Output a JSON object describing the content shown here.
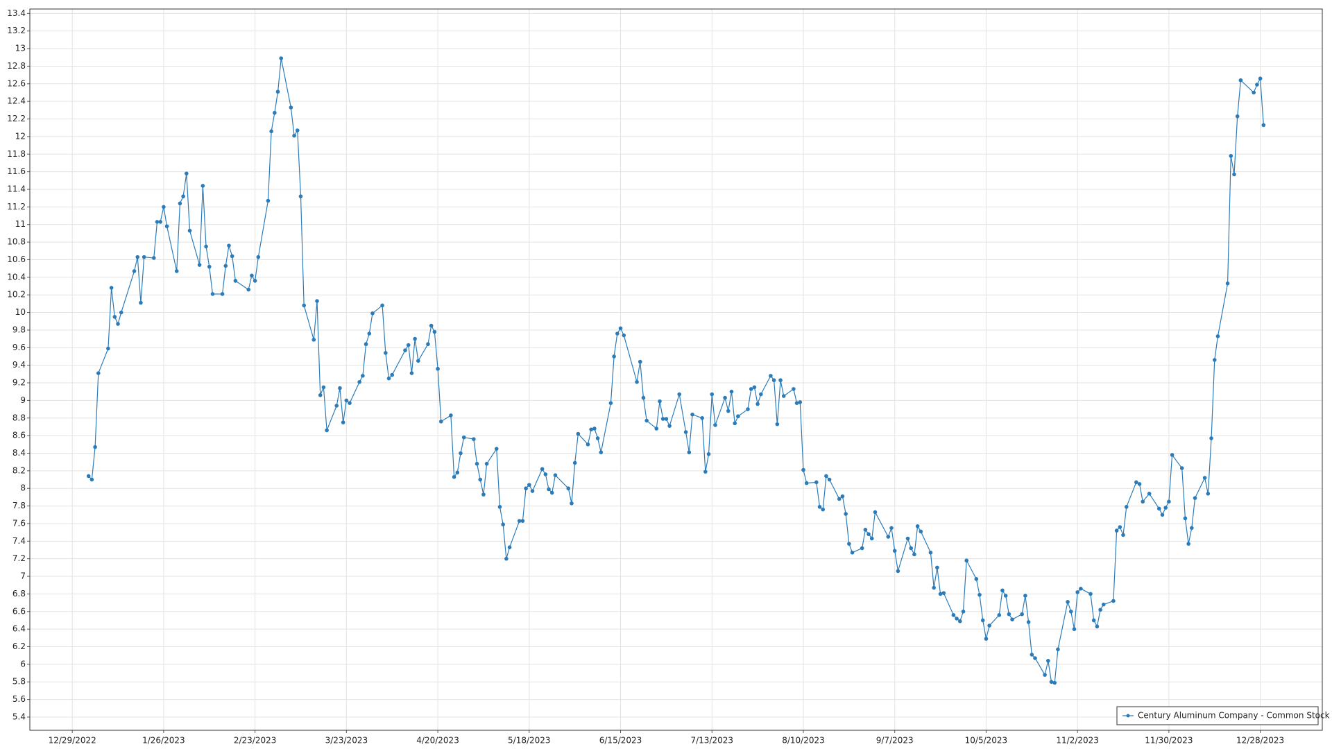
{
  "chart_data": {
    "type": "line",
    "x": [
      "1/3/2023",
      "1/4/2023",
      "1/5/2023",
      "1/6/2023",
      "1/9/2023",
      "1/10/2023",
      "1/11/2023",
      "1/12/2023",
      "1/13/2023",
      "1/17/2023",
      "1/18/2023",
      "1/19/2023",
      "1/20/2023",
      "1/23/2023",
      "1/24/2023",
      "1/25/2023",
      "1/26/2023",
      "1/27/2023",
      "1/30/2023",
      "1/31/2023",
      "2/1/2023",
      "2/2/2023",
      "2/3/2023",
      "2/6/2023",
      "2/7/2023",
      "2/8/2023",
      "2/9/2023",
      "2/10/2023",
      "2/13/2023",
      "2/14/2023",
      "2/15/2023",
      "2/16/2023",
      "2/17/2023",
      "2/21/2023",
      "2/22/2023",
      "2/23/2023",
      "2/24/2023",
      "2/27/2023",
      "2/28/2023",
      "3/1/2023",
      "3/2/2023",
      "3/3/2023",
      "3/6/2023",
      "3/7/2023",
      "3/8/2023",
      "3/9/2023",
      "3/10/2023",
      "3/13/2023",
      "3/14/2023",
      "3/15/2023",
      "3/16/2023",
      "3/17/2023",
      "3/20/2023",
      "3/21/2023",
      "3/22/2023",
      "3/23/2023",
      "3/24/2023",
      "3/27/2023",
      "3/28/2023",
      "3/29/2023",
      "3/30/2023",
      "3/31/2023",
      "4/3/2023",
      "4/4/2023",
      "4/5/2023",
      "4/6/2023",
      "4/10/2023",
      "4/11/2023",
      "4/12/2023",
      "4/13/2023",
      "4/14/2023",
      "4/17/2023",
      "4/18/2023",
      "4/19/2023",
      "4/20/2023",
      "4/21/2023",
      "4/24/2023",
      "4/25/2023",
      "4/26/2023",
      "4/27/2023",
      "4/28/2023",
      "5/1/2023",
      "5/2/2023",
      "5/3/2023",
      "5/4/2023",
      "5/5/2023",
      "5/8/2023",
      "5/9/2023",
      "5/10/2023",
      "5/11/2023",
      "5/12/2023",
      "5/15/2023",
      "5/16/2023",
      "5/17/2023",
      "5/18/2023",
      "5/19/2023",
      "5/22/2023",
      "5/23/2023",
      "5/24/2023",
      "5/25/2023",
      "5/26/2023",
      "5/30/2023",
      "5/31/2023",
      "6/1/2023",
      "6/2/2023",
      "6/5/2023",
      "6/6/2023",
      "6/7/2023",
      "6/8/2023",
      "6/9/2023",
      "6/12/2023",
      "6/13/2023",
      "6/14/2023",
      "6/15/2023",
      "6/16/2023",
      "6/20/2023",
      "6/21/2023",
      "6/22/2023",
      "6/23/2023",
      "6/26/2023",
      "6/27/2023",
      "6/28/2023",
      "6/29/2023",
      "6/30/2023",
      "7/3/2023",
      "7/5/2023",
      "7/6/2023",
      "7/7/2023",
      "7/10/2023",
      "7/11/2023",
      "7/12/2023",
      "7/13/2023",
      "7/14/2023",
      "7/17/2023",
      "7/18/2023",
      "7/19/2023",
      "7/20/2023",
      "7/21/2023",
      "7/24/2023",
      "7/25/2023",
      "7/26/2023",
      "7/27/2023",
      "7/28/2023",
      "7/31/2023",
      "8/1/2023",
      "8/2/2023",
      "8/3/2023",
      "8/4/2023",
      "8/7/2023",
      "8/8/2023",
      "8/9/2023",
      "8/10/2023",
      "8/11/2023",
      "8/14/2023",
      "8/15/2023",
      "8/16/2023",
      "8/17/2023",
      "8/18/2023",
      "8/21/2023",
      "8/22/2023",
      "8/23/2023",
      "8/24/2023",
      "8/25/2023",
      "8/28/2023",
      "8/29/2023",
      "8/30/2023",
      "8/31/2023",
      "9/1/2023",
      "9/5/2023",
      "9/6/2023",
      "9/7/2023",
      "9/8/2023",
      "9/11/2023",
      "9/12/2023",
      "9/13/2023",
      "9/14/2023",
      "9/15/2023",
      "9/18/2023",
      "9/19/2023",
      "9/20/2023",
      "9/21/2023",
      "9/22/2023",
      "9/25/2023",
      "9/26/2023",
      "9/27/2023",
      "9/28/2023",
      "9/29/2023",
      "10/2/2023",
      "10/3/2023",
      "10/4/2023",
      "10/5/2023",
      "10/6/2023",
      "10/9/2023",
      "10/10/2023",
      "10/11/2023",
      "10/12/2023",
      "10/13/2023",
      "10/16/2023",
      "10/17/2023",
      "10/18/2023",
      "10/19/2023",
      "10/20/2023",
      "10/23/2023",
      "10/24/2023",
      "10/25/2023",
      "10/26/2023",
      "10/27/2023",
      "10/30/2023",
      "10/31/2023",
      "11/1/2023",
      "11/2/2023",
      "11/3/2023",
      "11/6/2023",
      "11/7/2023",
      "11/8/2023",
      "11/9/2023",
      "11/10/2023",
      "11/13/2023",
      "11/14/2023",
      "11/15/2023",
      "11/16/2023",
      "11/17/2023",
      "11/20/2023",
      "11/21/2023",
      "11/22/2023",
      "11/24/2023",
      "11/27/2023",
      "11/28/2023",
      "11/29/2023",
      "11/30/2023",
      "12/1/2023",
      "12/4/2023",
      "12/5/2023",
      "12/6/2023",
      "12/7/2023",
      "12/8/2023",
      "12/11/2023",
      "12/12/2023",
      "12/13/2023",
      "12/14/2023",
      "12/15/2023",
      "12/18/2023",
      "12/19/2023",
      "12/20/2023",
      "12/21/2023",
      "12/22/2023",
      "12/26/2023",
      "12/27/2023",
      "12/28/2023",
      "12/29/2023"
    ],
    "series": [
      {
        "name": "Century Aluminum Company - Common Stock",
        "color": "#2b7bb9",
        "values": [
          8.14,
          8.1,
          8.47,
          9.31,
          9.59,
          10.28,
          9.95,
          9.87,
          10.0,
          10.47,
          10.63,
          10.11,
          10.63,
          10.62,
          11.03,
          11.03,
          11.2,
          10.98,
          10.47,
          11.24,
          11.32,
          11.58,
          10.93,
          10.54,
          11.44,
          10.75,
          10.52,
          10.21,
          10.21,
          10.53,
          10.76,
          10.64,
          10.36,
          10.26,
          10.42,
          10.36,
          10.63,
          11.27,
          12.06,
          12.27,
          12.51,
          12.89,
          12.33,
          12.01,
          12.07,
          11.32,
          10.08,
          9.69,
          10.13,
          9.06,
          9.15,
          8.66,
          8.94,
          9.14,
          8.75,
          9.0,
          8.97,
          9.21,
          9.28,
          9.64,
          9.76,
          9.99,
          10.08,
          9.54,
          9.25,
          9.29,
          9.57,
          9.63,
          9.31,
          9.7,
          9.45,
          9.64,
          9.85,
          9.78,
          9.36,
          8.76,
          8.83,
          8.13,
          8.18,
          8.4,
          8.58,
          8.56,
          8.28,
          8.1,
          7.93,
          8.28,
          8.45,
          7.79,
          7.59,
          7.2,
          7.33,
          7.63,
          7.63,
          8.0,
          8.04,
          7.97,
          8.22,
          8.16,
          7.99,
          7.95,
          8.15,
          8.0,
          7.83,
          8.29,
          8.62,
          8.5,
          8.67,
          8.68,
          8.57,
          8.41,
          8.97,
          9.5,
          9.76,
          9.82,
          9.74,
          9.21,
          9.44,
          9.03,
          8.77,
          8.68,
          8.99,
          8.79,
          8.79,
          8.71,
          9.07,
          8.64,
          8.41,
          8.84,
          8.8,
          8.19,
          8.39,
          9.07,
          8.72,
          9.03,
          8.88,
          9.1,
          8.74,
          8.82,
          8.9,
          9.13,
          9.15,
          8.96,
          9.07,
          9.28,
          9.23,
          8.73,
          9.23,
          9.05,
          9.13,
          8.97,
          8.98,
          8.21,
          8.06,
          8.07,
          7.79,
          7.76,
          8.14,
          8.1,
          7.88,
          7.91,
          7.71,
          7.37,
          7.27,
          7.32,
          7.53,
          7.48,
          7.43,
          7.73,
          7.45,
          7.55,
          7.29,
          7.06,
          7.43,
          7.32,
          7.25,
          7.57,
          7.51,
          7.27,
          6.87,
          7.1,
          6.8,
          6.81,
          6.56,
          6.52,
          6.49,
          6.6,
          7.18,
          6.97,
          6.79,
          6.5,
          6.29,
          6.44,
          6.56,
          6.84,
          6.78,
          6.57,
          6.51,
          6.57,
          6.78,
          6.48,
          6.11,
          6.07,
          5.88,
          6.04,
          5.8,
          5.79,
          6.17,
          6.71,
          6.6,
          6.4,
          6.82,
          6.86,
          6.8,
          6.5,
          6.43,
          6.62,
          6.68,
          6.72,
          7.52,
          7.56,
          7.47,
          7.79,
          8.07,
          8.05,
          7.85,
          7.94,
          7.77,
          7.7,
          7.78,
          7.85,
          8.38,
          8.23,
          7.66,
          7.37,
          7.55,
          7.89,
          8.12,
          7.94,
          8.57,
          9.46,
          9.73,
          10.33,
          11.78,
          11.57,
          12.23,
          12.64,
          12.5,
          12.59,
          12.66,
          12.13
        ]
      }
    ],
    "xlim": [
      "12/16/2022",
      "1/16/2024"
    ],
    "xticks": [
      "12/29/2022",
      "1/26/2023",
      "2/23/2023",
      "3/23/2023",
      "4/20/2023",
      "5/18/2023",
      "6/15/2023",
      "7/13/2023",
      "8/10/2023",
      "9/7/2023",
      "10/5/2023",
      "11/2/2023",
      "11/30/2023",
      "12/28/2023"
    ],
    "ylim": [
      5.25,
      13.45
    ],
    "yticks": [
      5.4,
      5.6,
      5.8,
      6,
      6.2,
      6.4,
      6.6,
      6.8,
      7,
      7.2,
      7.4,
      7.6,
      7.8,
      8,
      8.2,
      8.4,
      8.6,
      8.8,
      9,
      9.2,
      9.4,
      9.6,
      9.8,
      10,
      10.2,
      10.4,
      10.6,
      10.8,
      11,
      11.2,
      11.4,
      11.6,
      11.8,
      12,
      12.2,
      12.4,
      12.6,
      12.8,
      13,
      13.2,
      13.4
    ],
    "grid": true,
    "legend": "bottom-right"
  }
}
